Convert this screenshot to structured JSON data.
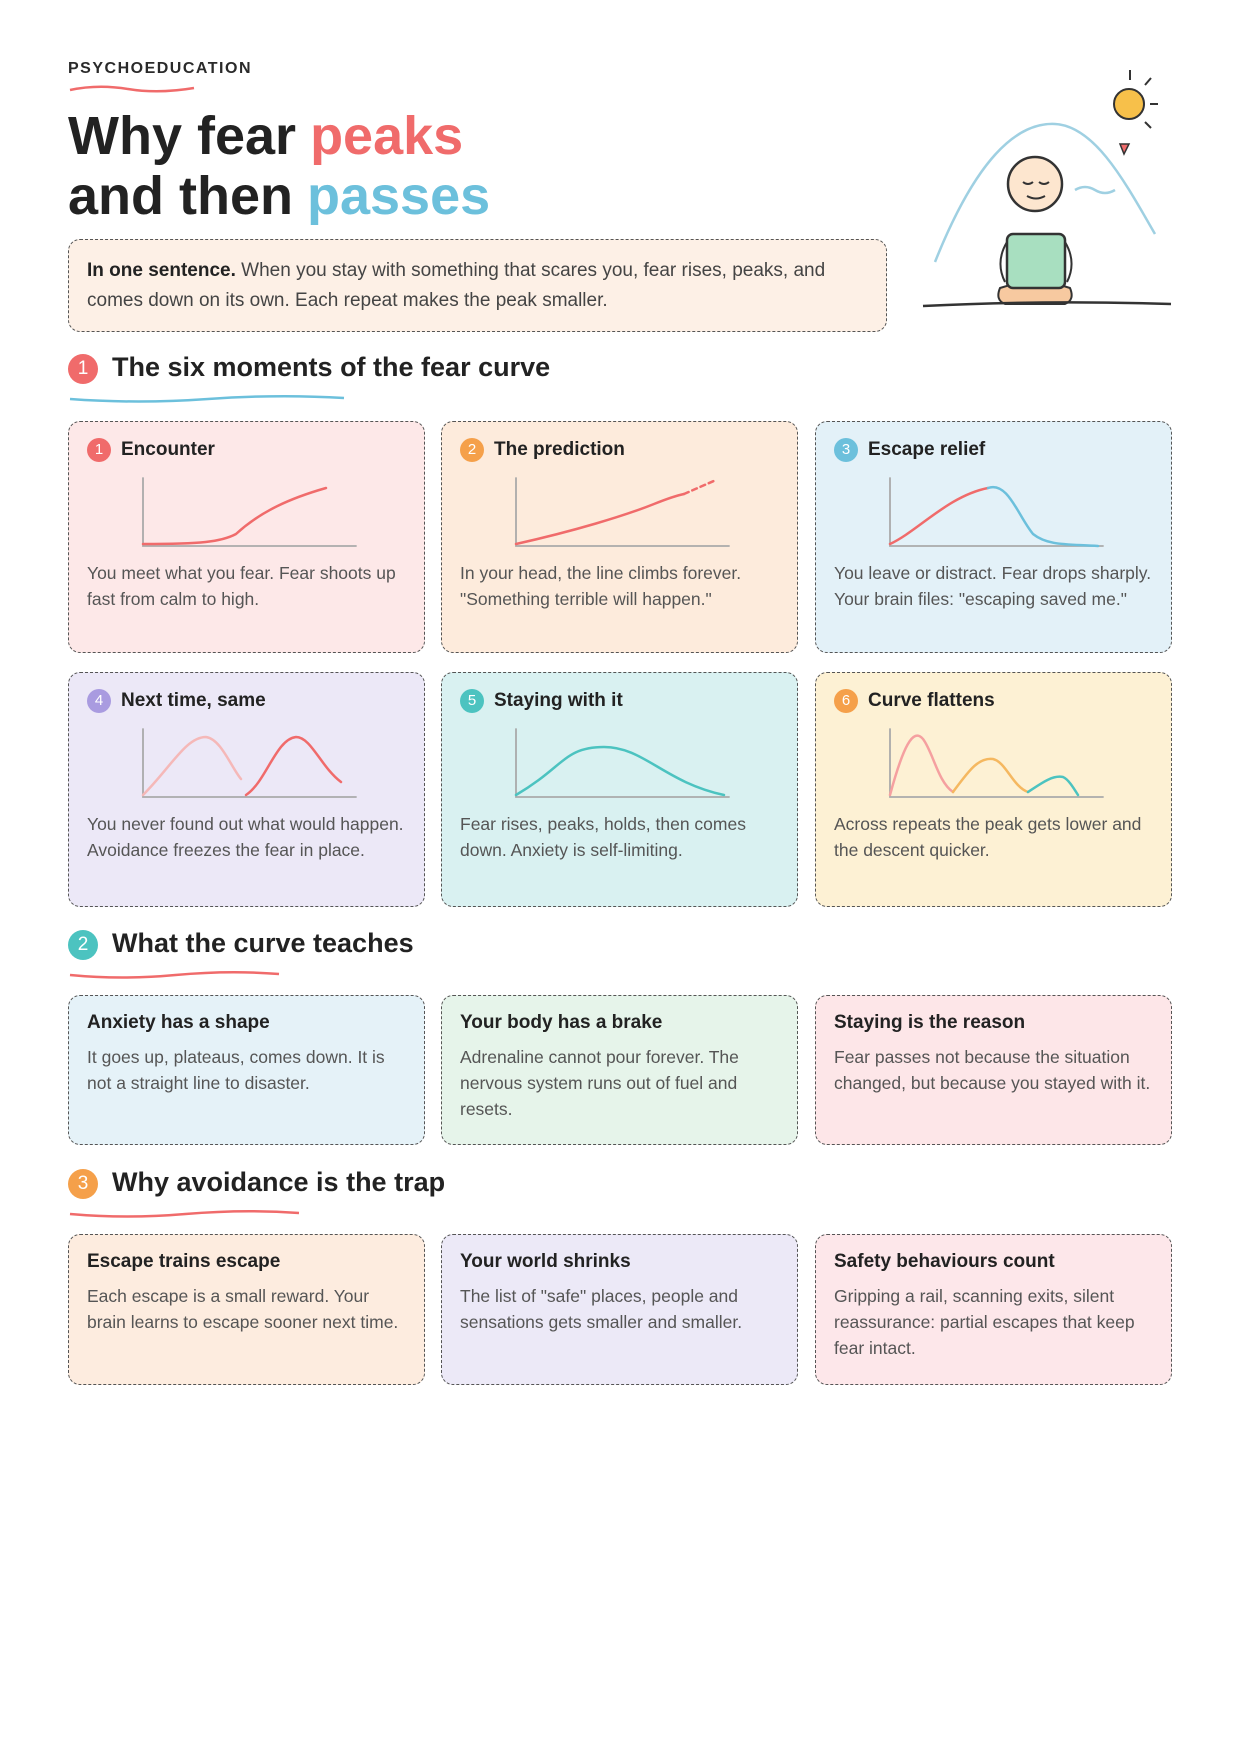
{
  "header": {
    "kicker": "PSYCHOEDUCATION",
    "title_line1": "Why fear",
    "title_accent1": "peaks",
    "title_line2": "and then",
    "title_accent2": "passes"
  },
  "summary": {
    "lead": "In one sentence.",
    "text": "When you stay with something that scares you, fear rises, peaks, and comes down on its own. Each repeat makes the peak smaller."
  },
  "sections": [
    {
      "number": "1",
      "heading": "The six moments of the fear curve",
      "cards": [
        {
          "number": "1",
          "title": "Encounter",
          "text": "You meet what you fear. Fear shoots up fast from calm to high."
        },
        {
          "number": "2",
          "title": "The prediction",
          "text": "In your head, the line climbs forever. \"Something terrible will happen.\""
        },
        {
          "number": "3",
          "title": "Escape relief",
          "text": "You leave or distract. Fear drops sharply. Your brain files: \"escaping saved me.\""
        },
        {
          "number": "4",
          "title": "Next time, same",
          "text": "You never found out what would happen. Avoidance freezes the fear in place."
        },
        {
          "number": "5",
          "title": "Staying with it",
          "text": "Fear rises, peaks, holds, then comes down. Anxiety is self-limiting."
        },
        {
          "number": "6",
          "title": "Curve flattens",
          "text": "Across repeats the peak gets lower and the descent quicker."
        }
      ]
    },
    {
      "number": "2",
      "heading": "What the curve teaches",
      "cards": [
        {
          "title": "Anxiety has a shape",
          "text": "It goes up, plateaus, comes down. It is not a straight line to disaster."
        },
        {
          "title": "Your body has a brake",
          "text": "Adrenaline cannot pour forever. The nervous system runs out of fuel and resets."
        },
        {
          "title": "Staying is the reason",
          "text": "Fear passes not because the situation changed, but because you stayed with it."
        }
      ]
    },
    {
      "number": "3",
      "heading": "Why avoidance is the trap",
      "cards": [
        {
          "title": "Escape trains escape",
          "text": "Each escape is a small reward. Your brain learns to escape sooner next time."
        },
        {
          "title": "Your world shrinks",
          "text": "The list of \"safe\" places, people and sensations gets smaller and smaller."
        },
        {
          "title": "Safety behaviours count",
          "text": "Gripping a rail, scanning exits, silent reassurance: partial escapes that keep fear intact."
        }
      ]
    }
  ]
}
